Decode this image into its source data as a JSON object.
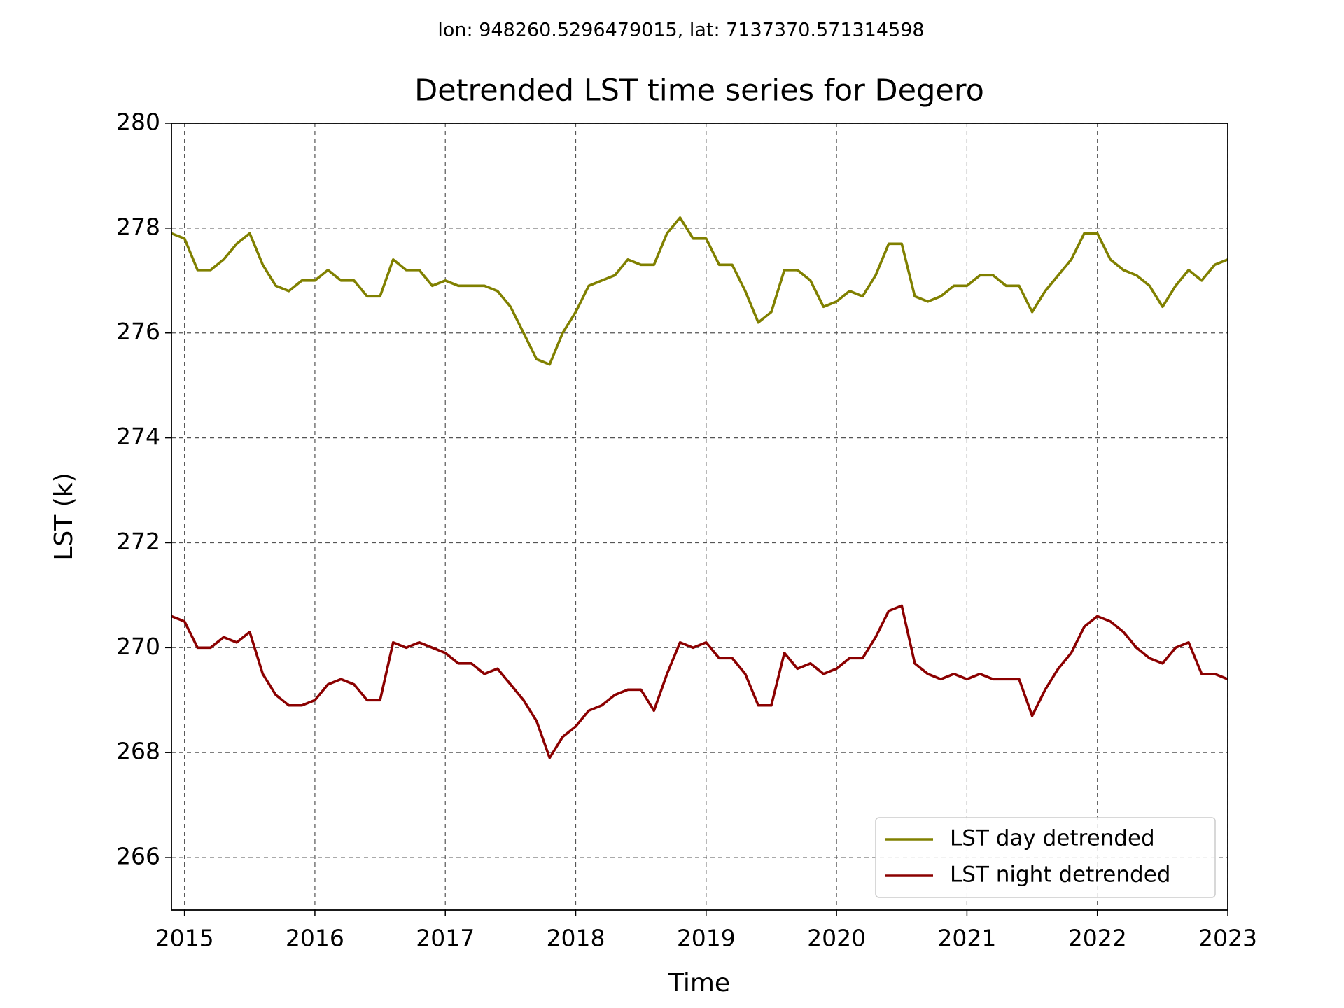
{
  "chart_data": {
    "type": "line",
    "subtitle": "lon: 948260.5296479015, lat: 7137370.571314598",
    "title": "Detrended LST time series for Degero",
    "x_label": "Time",
    "y_label": "LST (k)",
    "x": [
      2014.9,
      2015.0,
      2015.1,
      2015.2,
      2015.3,
      2015.4,
      2015.5,
      2015.6,
      2015.7,
      2015.8,
      2015.9,
      2016.0,
      2016.1,
      2016.2,
      2016.3,
      2016.4,
      2016.5,
      2016.6,
      2016.7,
      2016.8,
      2016.9,
      2017.0,
      2017.1,
      2017.2,
      2017.3,
      2017.4,
      2017.5,
      2017.6,
      2017.7,
      2017.8,
      2017.9,
      2018.0,
      2018.1,
      2018.2,
      2018.3,
      2018.4,
      2018.5,
      2018.6,
      2018.7,
      2018.8,
      2018.9,
      2019.0,
      2019.1,
      2019.2,
      2019.3,
      2019.4,
      2019.5,
      2019.6,
      2019.7,
      2019.8,
      2019.9,
      2020.0,
      2020.1,
      2020.2,
      2020.3,
      2020.4,
      2020.5,
      2020.6,
      2020.7,
      2020.8,
      2020.9,
      2021.0,
      2021.1,
      2021.2,
      2021.3,
      2021.4,
      2021.5,
      2021.6,
      2021.7,
      2021.8,
      2021.9,
      2022.0,
      2022.1,
      2022.2,
      2022.3,
      2022.4,
      2022.5,
      2022.6,
      2022.7,
      2022.8,
      2022.9,
      2023.0
    ],
    "series": [
      {
        "name": "LST day detrended",
        "color": "#808000",
        "values": [
          277.9,
          277.8,
          277.2,
          277.2,
          277.4,
          277.7,
          277.9,
          277.3,
          276.9,
          276.8,
          277.0,
          277.0,
          277.2,
          277.0,
          277.0,
          276.7,
          276.7,
          277.4,
          277.2,
          277.2,
          276.9,
          277.0,
          276.9,
          276.9,
          276.9,
          276.8,
          276.5,
          276.0,
          275.5,
          275.4,
          276.0,
          276.4,
          276.9,
          277.0,
          277.1,
          277.4,
          277.3,
          277.3,
          277.9,
          278.2,
          277.8,
          277.8,
          277.3,
          277.3,
          276.8,
          276.2,
          276.4,
          277.2,
          277.2,
          277.0,
          276.5,
          276.6,
          276.8,
          276.7,
          277.1,
          277.7,
          277.7,
          276.7,
          276.6,
          276.7,
          276.9,
          276.9,
          277.1,
          277.1,
          276.9,
          276.9,
          276.4,
          276.8,
          277.1,
          277.4,
          277.9,
          277.9,
          277.4,
          277.2,
          277.1,
          276.9,
          276.5,
          276.9,
          277.2,
          277.0,
          277.3,
          277.4
        ]
      },
      {
        "name": "LST night detrended",
        "color": "#8b0000",
        "values": [
          270.6,
          270.5,
          270.0,
          270.0,
          270.2,
          270.1,
          270.3,
          269.5,
          269.1,
          268.9,
          268.9,
          269.0,
          269.3,
          269.4,
          269.3,
          269.0,
          269.0,
          270.1,
          270.0,
          270.1,
          270.0,
          269.9,
          269.7,
          269.7,
          269.5,
          269.6,
          269.3,
          269.0,
          268.6,
          267.9,
          268.3,
          268.5,
          268.8,
          268.9,
          269.1,
          269.2,
          269.2,
          268.8,
          269.5,
          270.1,
          270.0,
          270.1,
          269.8,
          269.8,
          269.5,
          268.9,
          268.9,
          269.9,
          269.6,
          269.7,
          269.5,
          269.6,
          269.8,
          269.8,
          270.2,
          270.7,
          270.8,
          269.7,
          269.5,
          269.4,
          269.5,
          269.4,
          269.5,
          269.4,
          269.4,
          269.4,
          268.7,
          269.2,
          269.6,
          269.9,
          270.4,
          270.6,
          270.5,
          270.3,
          270.0,
          269.8,
          269.7,
          270.0,
          270.1,
          269.5,
          269.5,
          269.4
        ]
      }
    ],
    "xlim": [
      2014.9,
      2023
    ],
    "xticks": [
      2015,
      2016,
      2017,
      2018,
      2019,
      2020,
      2021,
      2022,
      2023
    ],
    "ylim": [
      265,
      280
    ],
    "yticks": [
      266,
      268,
      270,
      272,
      274,
      276,
      278,
      280
    ],
    "grid": true,
    "legend": "lower right"
  }
}
